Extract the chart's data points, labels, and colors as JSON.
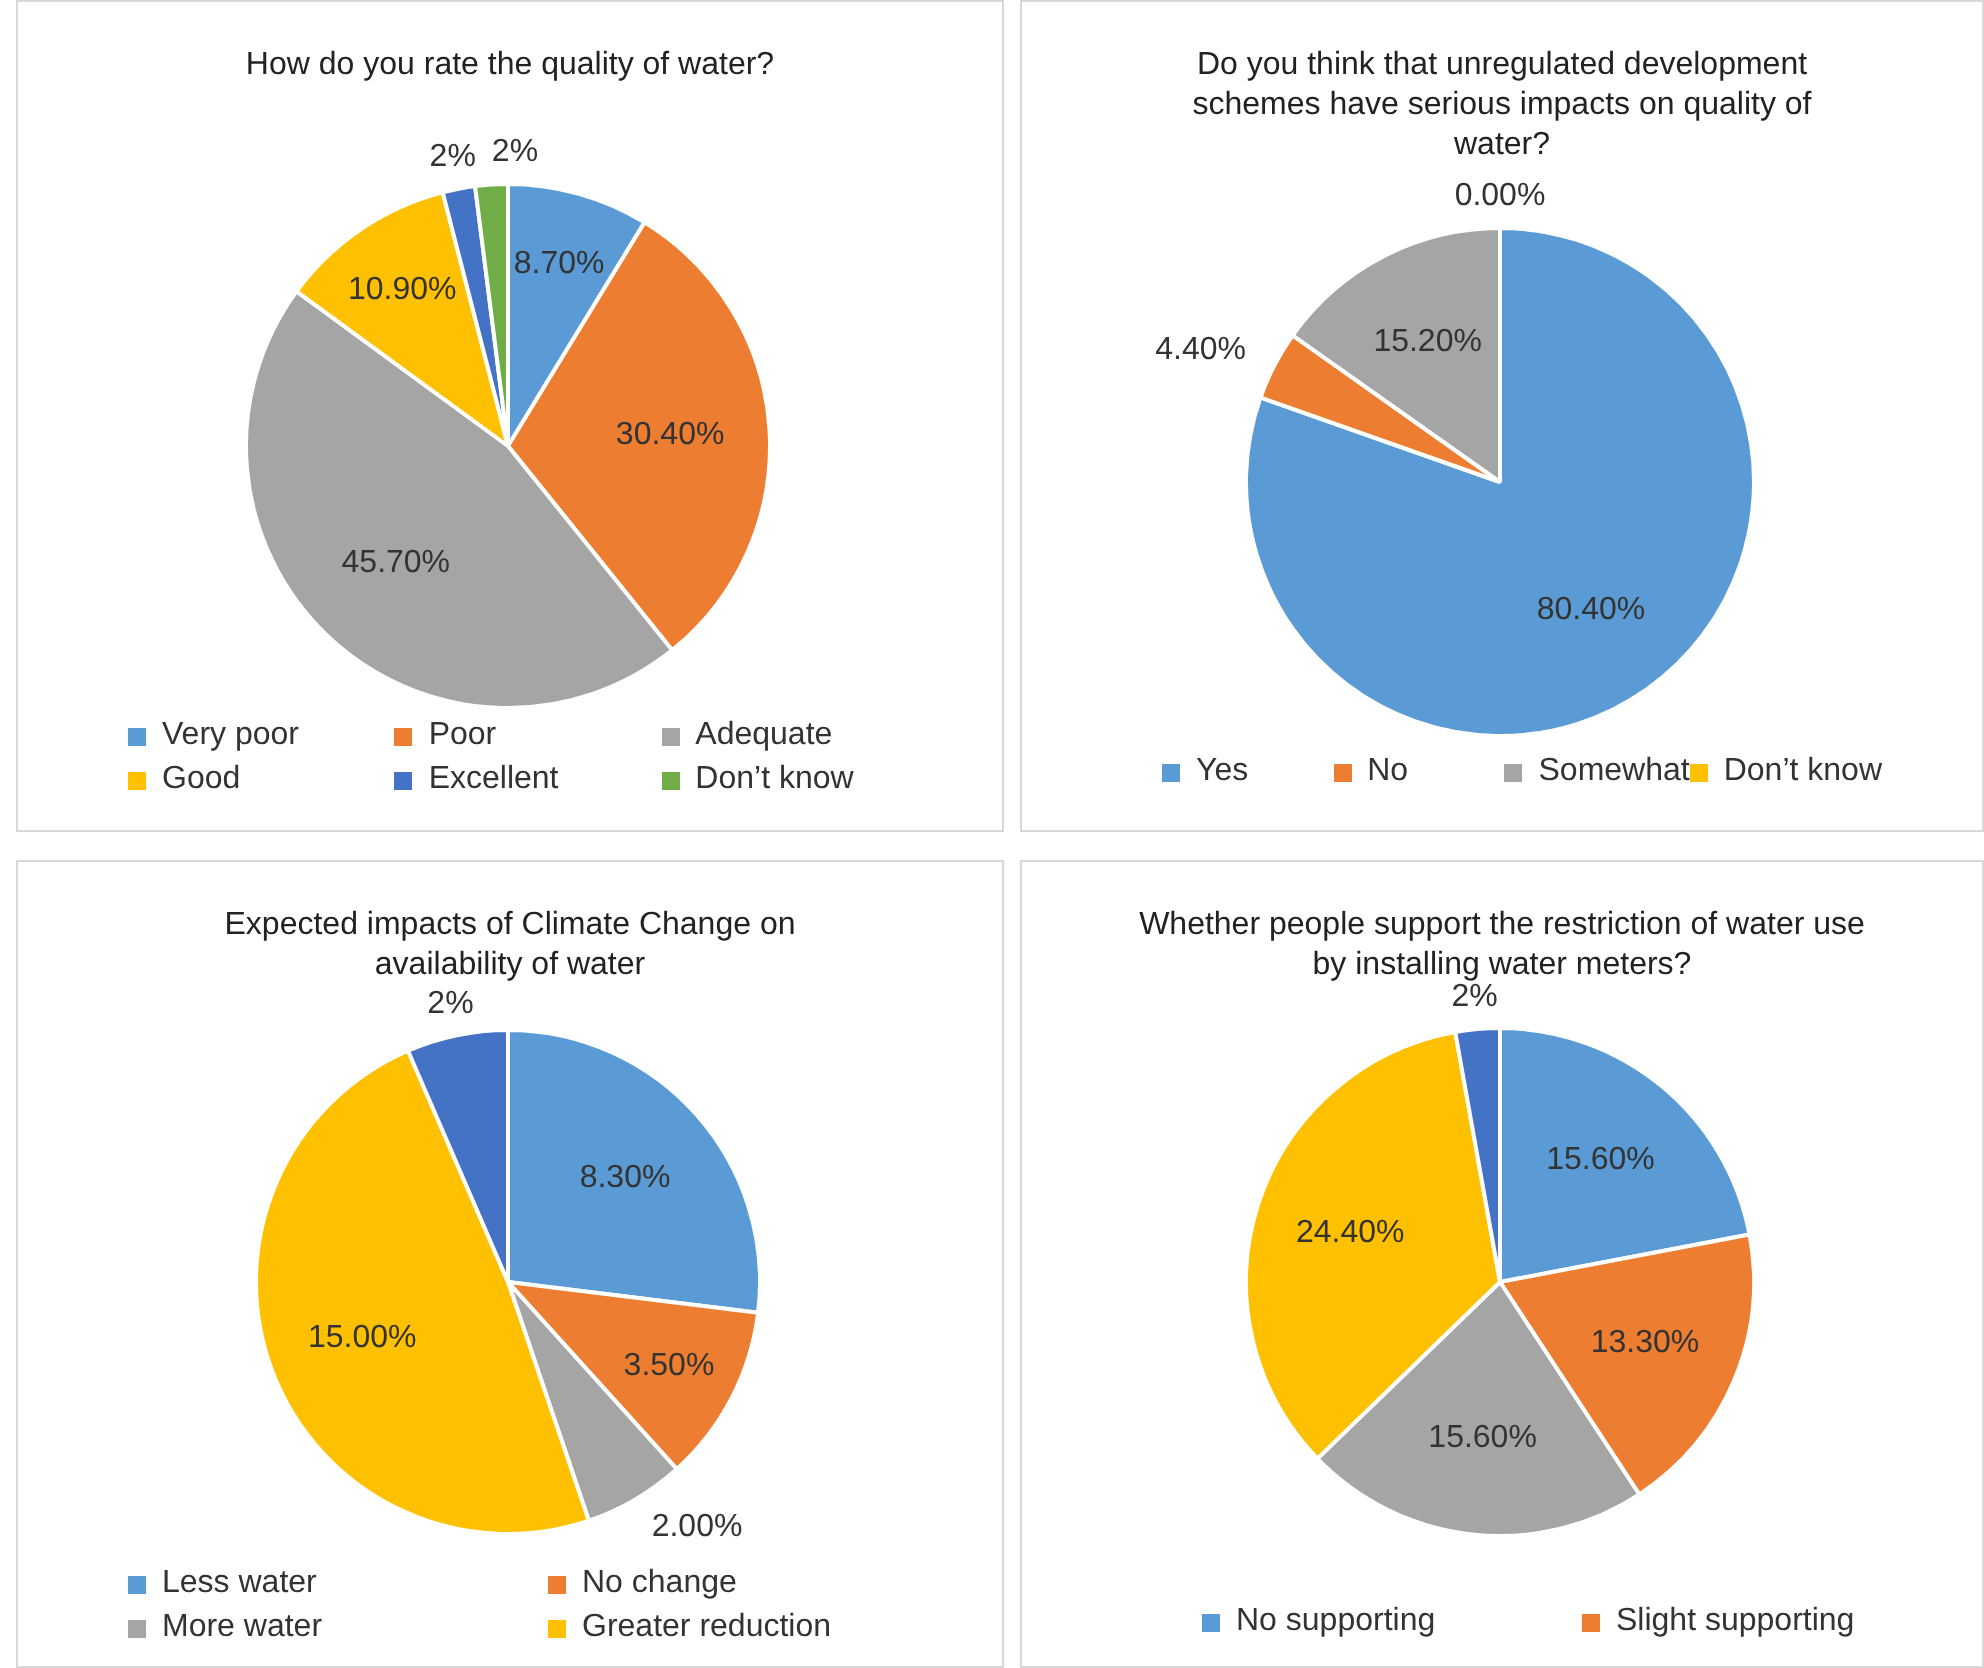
{
  "chart_data": [
    {
      "type": "pie",
      "title": "How do you rate the quality of water?",
      "categories": [
        "Very poor",
        "Poor",
        "Adequate",
        "Good",
        "Excellent",
        "Don’t know"
      ],
      "values": [
        8.7,
        30.4,
        45.7,
        10.9,
        2,
        2
      ],
      "value_labels": [
        "8.70%",
        "30.40%",
        "45.70%",
        "10.90%",
        "2%",
        "2%"
      ],
      "colors": [
        "#5b9bd5",
        "#ed7d31",
        "#a5a5a5",
        "#ffc000",
        "#4472c4",
        "#70ad47"
      ],
      "legend": "bottom"
    },
    {
      "type": "pie",
      "title": "Do you think that unregulated development schemes have serious impacts on quality of water?",
      "categories": [
        "Yes",
        "No",
        "Somewhat",
        "Don’t know"
      ],
      "values": [
        80.4,
        4.4,
        15.2,
        0
      ],
      "value_labels": [
        "80.40%",
        "4.40%",
        "15.20%",
        "0.00%"
      ],
      "colors": [
        "#5b9bd5",
        "#ed7d31",
        "#a5a5a5",
        "#ffc000"
      ],
      "legend": "bottom"
    },
    {
      "type": "pie",
      "title": "Expected impacts of Climate Change on availability of water",
      "categories": [
        "Less water",
        "No change",
        "More water",
        "Greater reduction",
        null
      ],
      "values": [
        8.3,
        3.5,
        2,
        15,
        2
      ],
      "value_labels": [
        "8.30%",
        "3.50%",
        "2.00%",
        "15.00%",
        "2%"
      ],
      "colors": [
        "#5b9bd5",
        "#ed7d31",
        "#a5a5a5",
        "#ffc000",
        "#4472c4"
      ],
      "legend": "bottom"
    },
    {
      "type": "pie",
      "title": "Whether people support the restriction of water use by installing water meters?",
      "categories": [
        "No supporting",
        "Slight supporting",
        null,
        null,
        null
      ],
      "values": [
        15.6,
        13.3,
        15.6,
        24.4,
        2
      ],
      "value_labels": [
        "15.60%",
        "13.30%",
        "15.60%",
        "24.40%",
        "2%"
      ],
      "colors": [
        "#5b9bd5",
        "#ed7d31",
        "#a5a5a5",
        "#ffc000",
        "#4472c4"
      ],
      "legend": "bottom"
    }
  ]
}
